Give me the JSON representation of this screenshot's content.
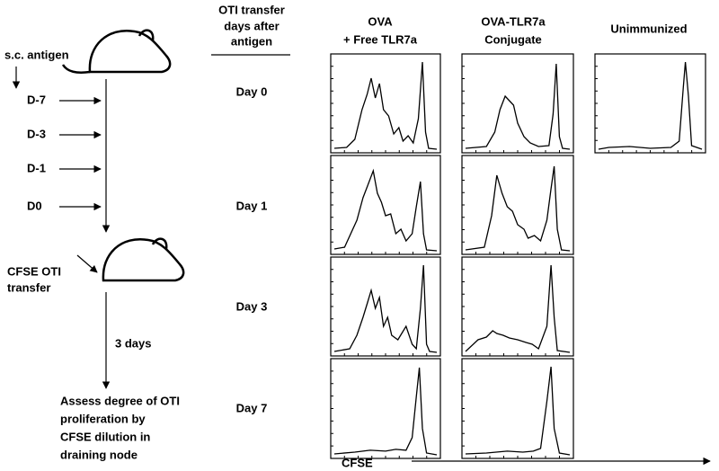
{
  "timeline": {
    "antigen_label": "s.c. antigen",
    "days": [
      "D-7",
      "D-3",
      "D-1",
      "D0"
    ],
    "transfer_label": [
      "CFSE OTI",
      "transfer"
    ],
    "interval_label": "3 days",
    "readout": [
      "Assess degree of OTI",
      "proliferation by",
      "CFSE dilution in",
      "draining node"
    ]
  },
  "row_header": [
    "OTI transfer",
    "days after",
    "antigen"
  ],
  "rows": [
    "Day 0",
    "Day 1",
    "Day 3",
    "Day 7"
  ],
  "columns": [
    [
      "OVA",
      "+ Free TLR7a"
    ],
    [
      "OVA-TLR7a",
      "Conjugate"
    ],
    [
      "Unimmunized"
    ]
  ],
  "x_axis_label": "CFSE"
}
